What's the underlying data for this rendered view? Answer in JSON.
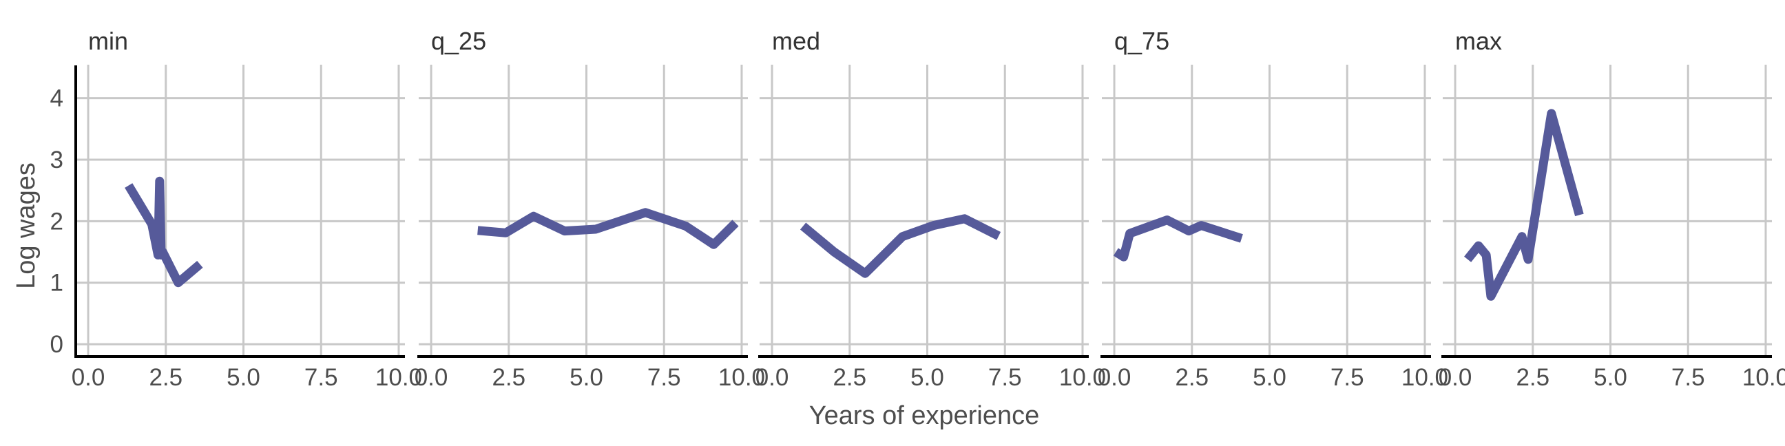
{
  "chart_data": {
    "type": "line",
    "xlabel": "Years of experience",
    "ylabel": "Log wages",
    "xlim": [
      -0.4,
      10.2
    ],
    "ylim": [
      -0.2,
      4.7
    ],
    "x_ticks": [
      0,
      2.5,
      5,
      7.5,
      10
    ],
    "x_tick_labels": [
      "0.0",
      "2.5",
      "5.0",
      "7.5",
      "10.0"
    ],
    "y_ticks": [
      0,
      1,
      2,
      3,
      4
    ],
    "y_tick_labels": [
      "0",
      "1",
      "2",
      "3",
      "4"
    ],
    "grid": true,
    "line_color": "#565a9a",
    "panels": [
      {
        "name": "min",
        "x": [
          1.3,
          2.05,
          2.25,
          2.3,
          2.35,
          2.4,
          2.9,
          3.6
        ],
        "y": [
          2.58,
          1.95,
          1.45,
          2.65,
          1.45,
          1.5,
          1.0,
          1.3
        ]
      },
      {
        "name": "q_25",
        "x": [
          1.5,
          2.4,
          3.3,
          4.3,
          5.3,
          6.9,
          8.2,
          9.1,
          9.8
        ],
        "y": [
          1.85,
          1.81,
          2.08,
          1.84,
          1.87,
          2.14,
          1.92,
          1.62,
          1.97
        ]
      },
      {
        "name": "med",
        "x": [
          1.0,
          2.0,
          3.0,
          4.2,
          5.2,
          6.2,
          7.3
        ],
        "y": [
          1.92,
          1.5,
          1.15,
          1.75,
          1.93,
          2.04,
          1.76
        ]
      },
      {
        "name": "q_75",
        "x": [
          0.05,
          0.3,
          0.5,
          1.7,
          2.4,
          2.8,
          4.1
        ],
        "y": [
          1.5,
          1.42,
          1.8,
          2.02,
          1.84,
          1.93,
          1.72
        ]
      },
      {
        "name": "max",
        "x": [
          0.4,
          0.75,
          1.0,
          1.15,
          2.15,
          2.35,
          3.1,
          4.0
        ],
        "y": [
          1.38,
          1.6,
          1.45,
          0.78,
          1.75,
          1.38,
          3.75,
          2.1
        ]
      }
    ]
  }
}
